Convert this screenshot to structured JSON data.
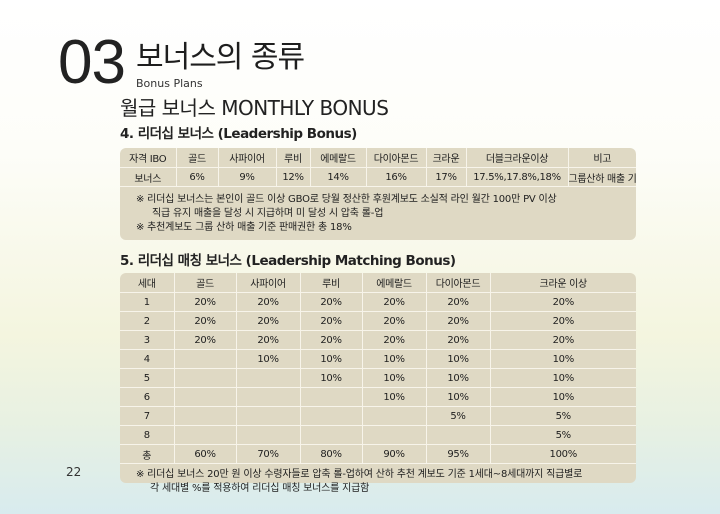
{
  "header": {
    "number": "03",
    "title": "보너스의 종류",
    "subtitle": "Bonus Plans"
  },
  "section_heading": "월급 보너스 MONTHLY BONUS",
  "leadership_bonus": {
    "heading": "4. 리더십 보너스 (Leadership Bonus)",
    "header_row": [
      "자격 IBO",
      "골드",
      "사파이어",
      "루비",
      "에메랄드",
      "다이아몬드",
      "크라운",
      "더블크라운이상",
      "비고"
    ],
    "value_row": [
      "보너스",
      "6%",
      "9%",
      "12%",
      "14%",
      "16%",
      "17%",
      "17.5%,17.8%,18%",
      "그룹산하 매출 기준"
    ],
    "notes": [
      "※ 리더십 보너스는 본인이 골드 이상 GBO로 당월 정산한 후원계보도 소실적 라인 월간 100만 PV 이상",
      "직급 유지 매출을 달성 시 지급하며 미 달성 시 압축 롤-업",
      "※ 추천계보도 그룹 산하 매출 기준 판매권한 총 18%"
    ]
  },
  "matching_bonus": {
    "heading": "5. 리더십 매칭 보너스 (Leadership Matching Bonus)",
    "header_row": [
      "세대",
      "골드",
      "사파이어",
      "루비",
      "에메랄드",
      "다이아몬드",
      "크라운 이상"
    ],
    "rows": [
      [
        "1",
        "20%",
        "20%",
        "20%",
        "20%",
        "20%",
        "20%"
      ],
      [
        "2",
        "20%",
        "20%",
        "20%",
        "20%",
        "20%",
        "20%"
      ],
      [
        "3",
        "20%",
        "20%",
        "20%",
        "20%",
        "20%",
        "20%"
      ],
      [
        "4",
        "",
        "10%",
        "10%",
        "10%",
        "10%",
        "10%"
      ],
      [
        "5",
        "",
        "",
        "10%",
        "10%",
        "10%",
        "10%"
      ],
      [
        "6",
        "",
        "",
        "",
        "10%",
        "10%",
        "10%"
      ],
      [
        "7",
        "",
        "",
        "",
        "",
        "5%",
        "5%"
      ],
      [
        "8",
        "",
        "",
        "",
        "",
        "",
        "5%"
      ],
      [
        "총",
        "60%",
        "70%",
        "80%",
        "90%",
        "95%",
        "100%"
      ]
    ],
    "notes": [
      "※ 리더십 보너스 20만 원 이상 수령자들로 압축 롤-업하여  산하 추천 계보도 기준 1세대~8세대까지 직급별로",
      "각 세대별 %를 적용하여 리더십 매칭 보너스를 지급함"
    ]
  },
  "page_number": "22"
}
